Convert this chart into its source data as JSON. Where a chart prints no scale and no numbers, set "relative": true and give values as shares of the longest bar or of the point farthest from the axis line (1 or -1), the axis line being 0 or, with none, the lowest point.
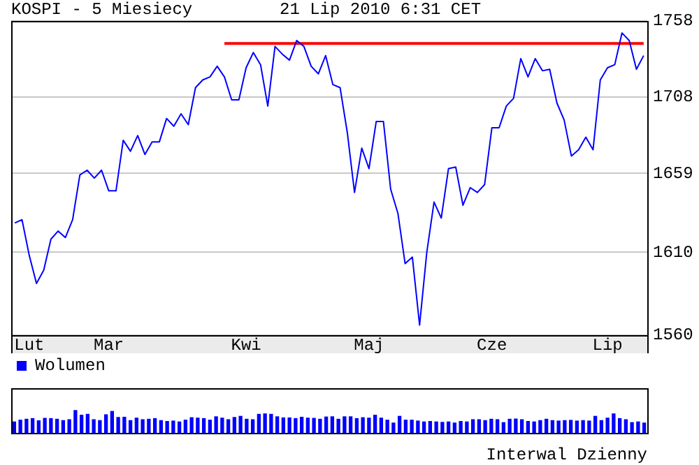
{
  "chart_data": [
    {
      "type": "line",
      "title": "KOSPI - 5 Miesiecy",
      "subtitle": "21 Lip 2010 6:31 CET",
      "categories": [
        null,
        null,
        "Lut",
        null,
        null,
        null,
        null,
        null,
        null,
        null,
        null,
        null,
        null,
        "Mar",
        null,
        null,
        null,
        null,
        null,
        null,
        null,
        null,
        null,
        null,
        null,
        null,
        null,
        null,
        null,
        null,
        null,
        null,
        "Kwi",
        null,
        null,
        null,
        null,
        null,
        null,
        null,
        null,
        null,
        null,
        null,
        null,
        null,
        null,
        null,
        null,
        "Maj",
        null,
        null,
        null,
        null,
        null,
        null,
        null,
        null,
        null,
        null,
        null,
        null,
        null,
        null,
        null,
        null,
        "Cze",
        null,
        null,
        null,
        null,
        null,
        null,
        null,
        null,
        null,
        null,
        null,
        null,
        null,
        null,
        null,
        "Lip",
        null,
        null,
        null,
        null,
        null
      ],
      "series": [
        {
          "color": "#0000ff",
          "values": [
            1628,
            1630,
            1608,
            1591,
            1599,
            1618,
            1623,
            1619,
            1630,
            1658,
            1661,
            1656,
            1661,
            1648,
            1648,
            1680,
            1673,
            1683,
            1671,
            1679,
            1679,
            1694,
            1689,
            1697,
            1690,
            1714,
            1719,
            1721,
            1728,
            1721,
            1706,
            1706,
            1727,
            1737,
            1729,
            1702,
            1741,
            1736,
            1732,
            1745,
            1741,
            1728,
            1723,
            1735,
            1716,
            1714,
            1685,
            1647,
            1675,
            1662,
            1692,
            1692,
            1649,
            1634,
            1603,
            1607,
            1566,
            1610,
            1641,
            1631,
            1662,
            1663,
            1639,
            1650,
            1647,
            1652,
            1688,
            1688,
            1702,
            1707,
            1733,
            1721,
            1733,
            1725,
            1726,
            1704,
            1693,
            1670,
            1674,
            1682,
            1674,
            1719,
            1727,
            1729,
            1750,
            1745,
            1726,
            1735
          ]
        },
        {
          "type": "line",
          "color": "#ff0000",
          "values": [
            null,
            null,
            null,
            null,
            null,
            null,
            null,
            null,
            null,
            null,
            null,
            null,
            null,
            null,
            null,
            null,
            null,
            null,
            null,
            null,
            null,
            null,
            null,
            null,
            null,
            null,
            null,
            null,
            null,
            1743,
            1743,
            1743,
            1743,
            1743,
            1743,
            1743,
            1743,
            1743,
            1743,
            1743,
            1743,
            1743,
            1743,
            1743,
            1743,
            1743,
            1743,
            1743,
            1743,
            1743,
            1743,
            1743,
            1743,
            1743,
            1743,
            1743,
            1743,
            1743,
            1743,
            1743,
            1743,
            1743,
            1743,
            1743,
            1743,
            1743,
            1743,
            1743,
            1743,
            1743,
            1743,
            1743,
            1743,
            1743,
            1743,
            1743,
            1743,
            1743,
            1743,
            1743,
            1743,
            1743,
            1743,
            1743,
            1743,
            1743,
            1743,
            1743
          ]
        }
      ],
      "ylim": [
        1560,
        1758
      ],
      "yticks": [
        1560,
        1610,
        1659,
        1708,
        1758
      ],
      "log": true,
      "grid": "y",
      "legend": false
    },
    {
      "type": "bar",
      "relative": true,
      "legend": "top left",
      "annotations": [
        "Interwal Dzienny"
      ],
      "categories": [
        null,
        null,
        null,
        null,
        null,
        null,
        null,
        null,
        null,
        null,
        null,
        null,
        null,
        null,
        null,
        null,
        null,
        null,
        null,
        null,
        null,
        null,
        null,
        null,
        null,
        null,
        null,
        null,
        null,
        null,
        null,
        null,
        null,
        null,
        null,
        null,
        null,
        null,
        null,
        null,
        null,
        null,
        null,
        null,
        null,
        null,
        null,
        null,
        null,
        null,
        null,
        null,
        null,
        null,
        null,
        null,
        null,
        null,
        null,
        null,
        null,
        null,
        null,
        null,
        null,
        null,
        null,
        null,
        null,
        null,
        null,
        null,
        null,
        null,
        null,
        null,
        null,
        null,
        null,
        null,
        null,
        null,
        null,
        null,
        null,
        null,
        null,
        null,
        null,
        null,
        null,
        null,
        null,
        null,
        null,
        null,
        null,
        null,
        null,
        null,
        null,
        null,
        null,
        null
      ],
      "series": [
        {
          "name": "Wolumen",
          "color": "#0000ff",
          "values": [
            0.49,
            0.57,
            0.61,
            0.64,
            0.54,
            0.65,
            0.64,
            0.61,
            0.55,
            0.59,
            1,
            0.79,
            0.83,
            0.59,
            0.55,
            0.81,
            0.96,
            0.69,
            0.7,
            0.55,
            0.66,
            0.59,
            0.61,
            0.64,
            0.55,
            0.51,
            0.53,
            0.49,
            0.57,
            0.68,
            0.66,
            0.64,
            0.57,
            0.72,
            0.66,
            0.59,
            0.69,
            0.74,
            0.61,
            0.59,
            0.83,
            0.85,
            0.83,
            0.72,
            0.67,
            0.67,
            0.64,
            0.7,
            0.66,
            0.65,
            0.61,
            0.71,
            0.72,
            0.61,
            0.72,
            0.72,
            0.64,
            0.68,
            0.66,
            0.79,
            0.66,
            0.57,
            0.44,
            0.74,
            0.57,
            0.57,
            0.53,
            0.49,
            0.51,
            0.49,
            0.47,
            0.49,
            0.44,
            0.51,
            0.49,
            0.59,
            0.59,
            0.55,
            0.61,
            0.59,
            0.46,
            0.61,
            0.62,
            0.59,
            0.51,
            0.49,
            0.55,
            0.61,
            0.55,
            0.53,
            0.55,
            0.56,
            0.53,
            0.55,
            0.53,
            0.74,
            0.55,
            0.66,
            0.85,
            0.64,
            0.59,
            0.46,
            0.49,
            0.44
          ]
        }
      ]
    }
  ]
}
